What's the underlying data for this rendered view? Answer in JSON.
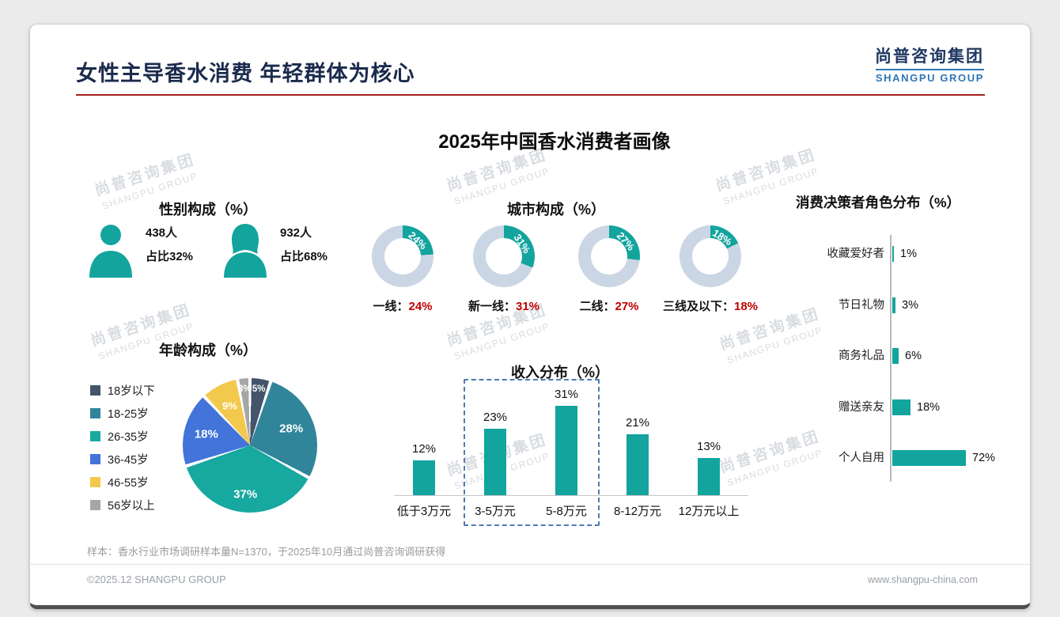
{
  "slide": {
    "title": "女性主导香水消费 年轻群体为核心",
    "chart_title": "2025年中国香水消费者画像",
    "logo": {
      "cn": "尚普咨询集团",
      "en": "SHANGPU GROUP"
    },
    "watermark": {
      "cn": "尚普咨询集团",
      "en": "SHANGPU GROUP"
    },
    "footnote": "样本：香水行业市场调研样本量N=1370，于2025年10月通过尚普咨询调研获得",
    "footer": {
      "left": "©2025.12 SHANGPU GROUP",
      "right": "www.shangpu-china.com"
    }
  },
  "colors": {
    "teal": "#13A49E",
    "donut_rest": "#CBD6E4",
    "red": "#C00000",
    "pie": [
      "#44546A",
      "#31859B",
      "#17A8A0",
      "#4274D9",
      "#F2C94C",
      "#A6A6A6"
    ]
  },
  "gender": {
    "title": "性别构成（%）",
    "male": {
      "count": "438人",
      "share": "占比32%"
    },
    "female": {
      "count": "932人",
      "share": "占比68%"
    }
  },
  "chart_data": [
    {
      "id": "city",
      "type": "pie",
      "variant": "donut-multiples",
      "title": "城市构成（%）",
      "separator": "：",
      "unit": "%",
      "items": [
        {
          "label": "一线",
          "value": 24
        },
        {
          "label": "新一线",
          "value": 31
        },
        {
          "label": "二线",
          "value": 27
        },
        {
          "label": "三线及以下",
          "value": 18
        }
      ]
    },
    {
      "id": "age",
      "type": "pie",
      "title": "年龄构成（%）",
      "legend_position": "left",
      "categories": [
        "18岁以下",
        "18-25岁",
        "26-35岁",
        "36-45岁",
        "46-55岁",
        "56岁以上"
      ],
      "values": [
        5,
        28,
        37,
        18,
        9,
        3
      ],
      "unit": "%"
    },
    {
      "id": "income",
      "type": "bar",
      "title": "收入分布（%）",
      "categories": [
        "低于3万元",
        "3-5万元",
        "5-8万元",
        "8-12万元",
        "12万元以上"
      ],
      "values": [
        12,
        23,
        31,
        21,
        13
      ],
      "unit": "%",
      "ylim": [
        0,
        35
      ],
      "highlight_box_categories": [
        "3-5万元",
        "5-8万元"
      ]
    },
    {
      "id": "decision",
      "type": "bar",
      "orientation": "horizontal",
      "title": "消费决策者角色分布（%）",
      "categories": [
        "收藏爱好者",
        "节日礼物",
        "商务礼品",
        "赠送亲友",
        "个人自用"
      ],
      "values": [
        1,
        3,
        6,
        18,
        72
      ],
      "unit": "%",
      "xlim": [
        0,
        80
      ]
    }
  ]
}
